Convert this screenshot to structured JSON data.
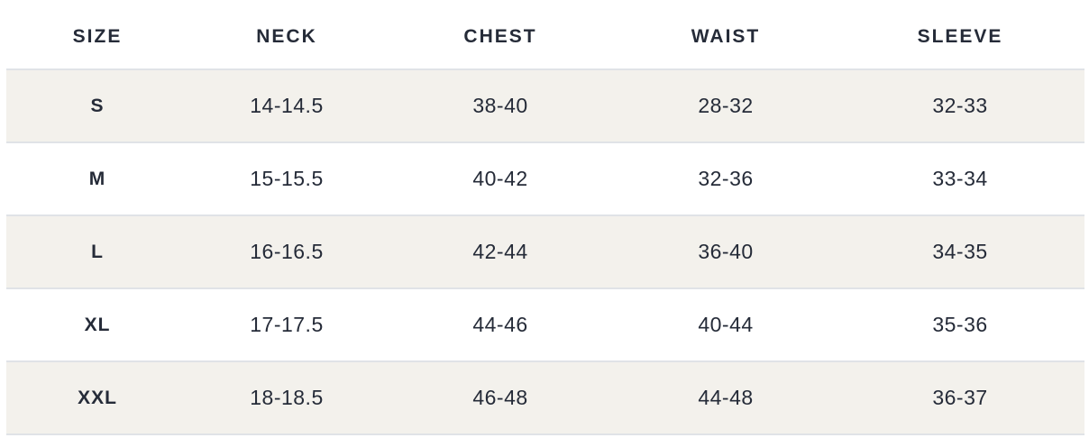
{
  "colors": {
    "row_shade": "#f3f1ec",
    "row_border": "#e0e3e7",
    "text": "#252b38",
    "background": "#ffffff"
  },
  "chart_data": {
    "type": "table",
    "title": "",
    "columns": [
      "SIZE",
      "NECK",
      "CHEST",
      "WAIST",
      "SLEEVE"
    ],
    "rows": [
      [
        "S",
        "14-14.5",
        "38-40",
        "28-32",
        "32-33"
      ],
      [
        "M",
        "15-15.5",
        "40-42",
        "32-36",
        "33-34"
      ],
      [
        "L",
        "16-16.5",
        "42-44",
        "36-40",
        "34-35"
      ],
      [
        "XL",
        "17-17.5",
        "44-46",
        "40-44",
        "35-36"
      ],
      [
        "XXL",
        "18-18.5",
        "46-48",
        "44-48",
        "36-37"
      ]
    ],
    "layout": {
      "banding": "alternating rows shaded starting with first body row",
      "header_background": "none",
      "row_separators": true
    }
  }
}
